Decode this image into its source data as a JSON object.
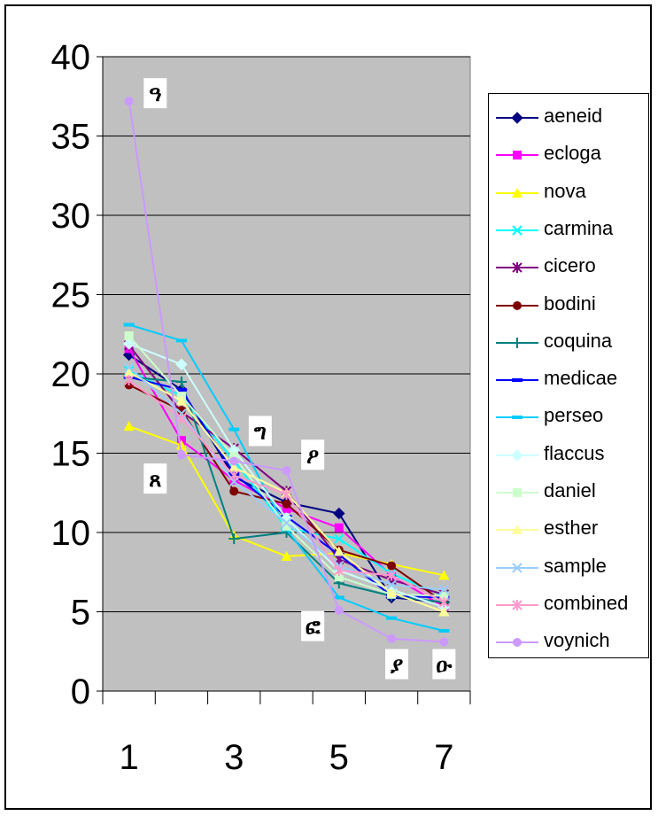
{
  "chart_data": {
    "type": "line",
    "title": "",
    "xlabel": "",
    "ylabel": "",
    "x": [
      1,
      2,
      3,
      4,
      5,
      6,
      7
    ],
    "x_tick_labels": [
      "1",
      "3",
      "5",
      "7"
    ],
    "y_ticks": [
      0,
      5,
      10,
      15,
      20,
      25,
      30,
      35,
      40
    ],
    "ylim": [
      0,
      40
    ],
    "grid": "horizontal",
    "plot_background": "#c0c0c0",
    "legend_position": "right",
    "series": [
      {
        "name": "aeneid",
        "color": "#000080",
        "marker": "diamond",
        "values": [
          21.2,
          19.0,
          13.5,
          11.9,
          11.2,
          5.9,
          5.6
        ]
      },
      {
        "name": "ecloga",
        "color": "#ff00ff",
        "marker": "square",
        "values": [
          21.6,
          15.8,
          13.3,
          11.5,
          10.3,
          7.3,
          5.3
        ]
      },
      {
        "name": "nova",
        "color": "#ffff00",
        "marker": "triangle",
        "values": [
          16.7,
          15.5,
          9.8,
          8.5,
          8.7,
          8.0,
          7.3
        ]
      },
      {
        "name": "carmina",
        "color": "#00ffff",
        "marker": "x",
        "values": [
          20.2,
          18.6,
          14.5,
          10.3,
          9.6,
          7.4,
          6.0
        ]
      },
      {
        "name": "cicero",
        "color": "#800080",
        "marker": "star",
        "values": [
          21.8,
          17.6,
          15.3,
          12.6,
          8.3,
          7.0,
          6.1
        ]
      },
      {
        "name": "bodini",
        "color": "#800000",
        "marker": "circle",
        "values": [
          19.3,
          17.7,
          12.6,
          11.8,
          8.9,
          7.9,
          5.6
        ]
      },
      {
        "name": "coquina",
        "color": "#008080",
        "marker": "plus",
        "values": [
          19.8,
          19.5,
          9.6,
          10.0,
          6.8,
          6.0,
          5.6
        ]
      },
      {
        "name": "medicae",
        "color": "#0000ff",
        "marker": "dash",
        "values": [
          19.8,
          19.0,
          13.7,
          11.0,
          8.6,
          6.0,
          5.9
        ]
      },
      {
        "name": "perseo",
        "color": "#00ccff",
        "marker": "dash",
        "values": [
          23.1,
          22.1,
          16.5,
          10.2,
          5.9,
          4.6,
          3.8
        ]
      },
      {
        "name": "flaccus",
        "color": "#ccffff",
        "marker": "diamond",
        "values": [
          21.9,
          20.6,
          15.2,
          10.9,
          7.6,
          6.4,
          5.3
        ]
      },
      {
        "name": "daniel",
        "color": "#ccffcc",
        "marker": "square",
        "values": [
          22.4,
          18.6,
          14.8,
          10.4,
          7.2,
          6.1,
          6.0
        ]
      },
      {
        "name": "esther",
        "color": "#ffff99",
        "marker": "triangle",
        "values": [
          20.1,
          18.3,
          14.1,
          12.5,
          8.8,
          6.2,
          5.0
        ]
      },
      {
        "name": "sample",
        "color": "#99ccff",
        "marker": "x",
        "values": [
          20.4,
          17.5,
          13.2,
          10.6,
          7.9,
          6.7,
          6.4
        ]
      },
      {
        "name": "combined",
        "color": "#ff99cc",
        "marker": "star",
        "values": [
          19.6,
          17.2,
          13.6,
          12.4,
          7.6,
          7.3,
          5.6
        ]
      },
      {
        "name": "voynich",
        "color": "#cc99ff",
        "marker": "circle",
        "values": [
          37.2,
          14.9,
          14.5,
          13.9,
          5.1,
          3.3,
          3.1
        ]
      }
    ],
    "annotations": [
      {
        "text": "ዓ",
        "x": 1.5,
        "y": 37.7
      },
      {
        "text": "ጸ",
        "x": 1.5,
        "y": 13.4
      },
      {
        "text": "ግ",
        "x": 3.5,
        "y": 16.4
      },
      {
        "text": "ዖ",
        "x": 4.5,
        "y": 14.9
      },
      {
        "text": "ፎ",
        "x": 4.5,
        "y": 4.1
      },
      {
        "text": "ያ",
        "x": 6.1,
        "y": 1.7
      },
      {
        "text": "ዑ",
        "x": 7.0,
        "y": 1.7
      }
    ]
  }
}
